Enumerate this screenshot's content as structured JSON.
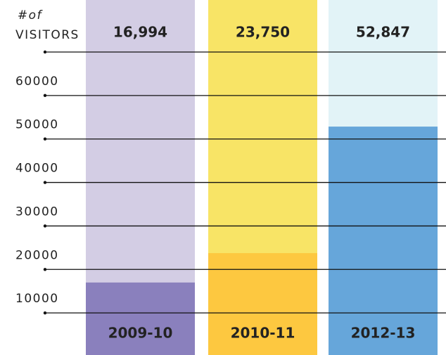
{
  "chart_data": {
    "type": "bar",
    "ylabel": [
      "#of",
      "VISITORS"
    ],
    "categories": [
      "2009-10",
      "2010-11",
      "2012-13"
    ],
    "values": [
      16994,
      23750,
      52847
    ],
    "value_labels": [
      "16,994",
      "23,750",
      "52,847"
    ],
    "colors": [
      "#8a80bd",
      "#fdc840",
      "#66a6da"
    ],
    "background_colors": [
      "#d3cde4",
      "#f8e466",
      "#e2f3f7"
    ],
    "ylim": [
      0,
      70000
    ],
    "yticks": [
      10000,
      20000,
      30000,
      40000,
      50000,
      60000
    ],
    "grid": true
  }
}
